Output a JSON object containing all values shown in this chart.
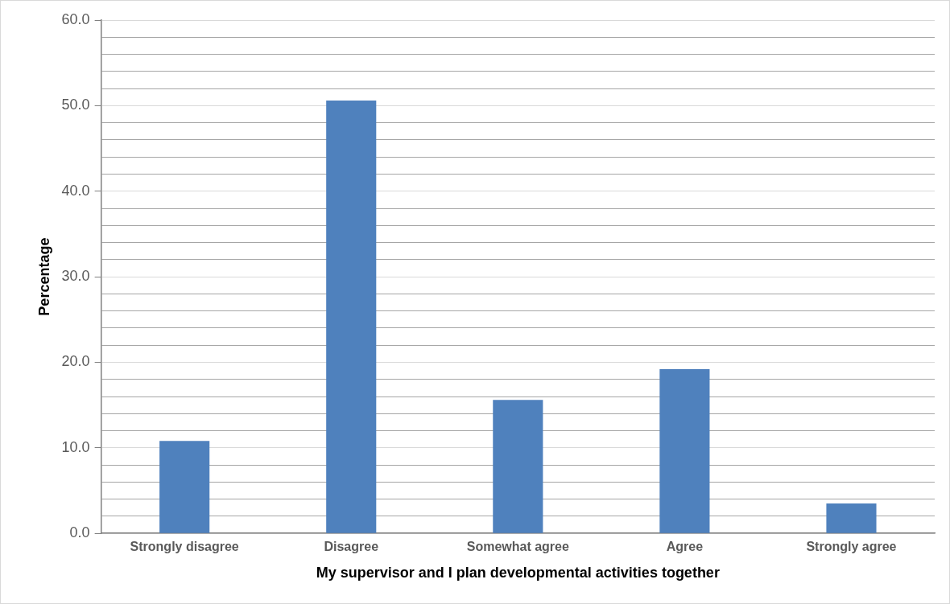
{
  "chart_data": {
    "type": "bar",
    "xlabel": "My supervisor and I plan developmental activities together",
    "ylabel": "Percentage",
    "categories": [
      "Strongly disagree",
      "Disagree",
      "Somewhat agree",
      "Agree",
      "Strongly agree"
    ],
    "values": [
      10.8,
      50.6,
      15.6,
      19.2,
      3.5
    ],
    "color": "#4f81bd",
    "ylim": [
      0,
      60
    ],
    "yticks": [
      {
        "value": 0,
        "label": "0.0"
      },
      {
        "value": 2,
        "label": null
      },
      {
        "value": 4,
        "label": null
      },
      {
        "value": 6,
        "label": null
      },
      {
        "value": 8,
        "label": null
      },
      {
        "value": 10,
        "label": "10.0"
      },
      {
        "value": 12,
        "label": null
      },
      {
        "value": 14,
        "label": null
      },
      {
        "value": 16,
        "label": null
      },
      {
        "value": 18,
        "label": null
      },
      {
        "value": 20,
        "label": "20.0"
      },
      {
        "value": 22,
        "label": null
      },
      {
        "value": 24,
        "label": null
      },
      {
        "value": 26,
        "label": null
      },
      {
        "value": 28,
        "label": null
      },
      {
        "value": 30,
        "label": "30.0"
      },
      {
        "value": 32,
        "label": null
      },
      {
        "value": 34,
        "label": null
      },
      {
        "value": 36,
        "label": null
      },
      {
        "value": 38,
        "label": null
      },
      {
        "value": 40,
        "label": "40.0"
      },
      {
        "value": 42,
        "label": null
      },
      {
        "value": 44,
        "label": null
      },
      {
        "value": 46,
        "label": null
      },
      {
        "value": 48,
        "label": null
      },
      {
        "value": 50,
        "label": "50.0"
      },
      {
        "value": 52,
        "label": null
      },
      {
        "value": 54,
        "label": null
      },
      {
        "value": 56,
        "label": null
      },
      {
        "value": 58,
        "label": null
      },
      {
        "value": 60,
        "label": "60.0"
      }
    ],
    "grid": "y"
  }
}
